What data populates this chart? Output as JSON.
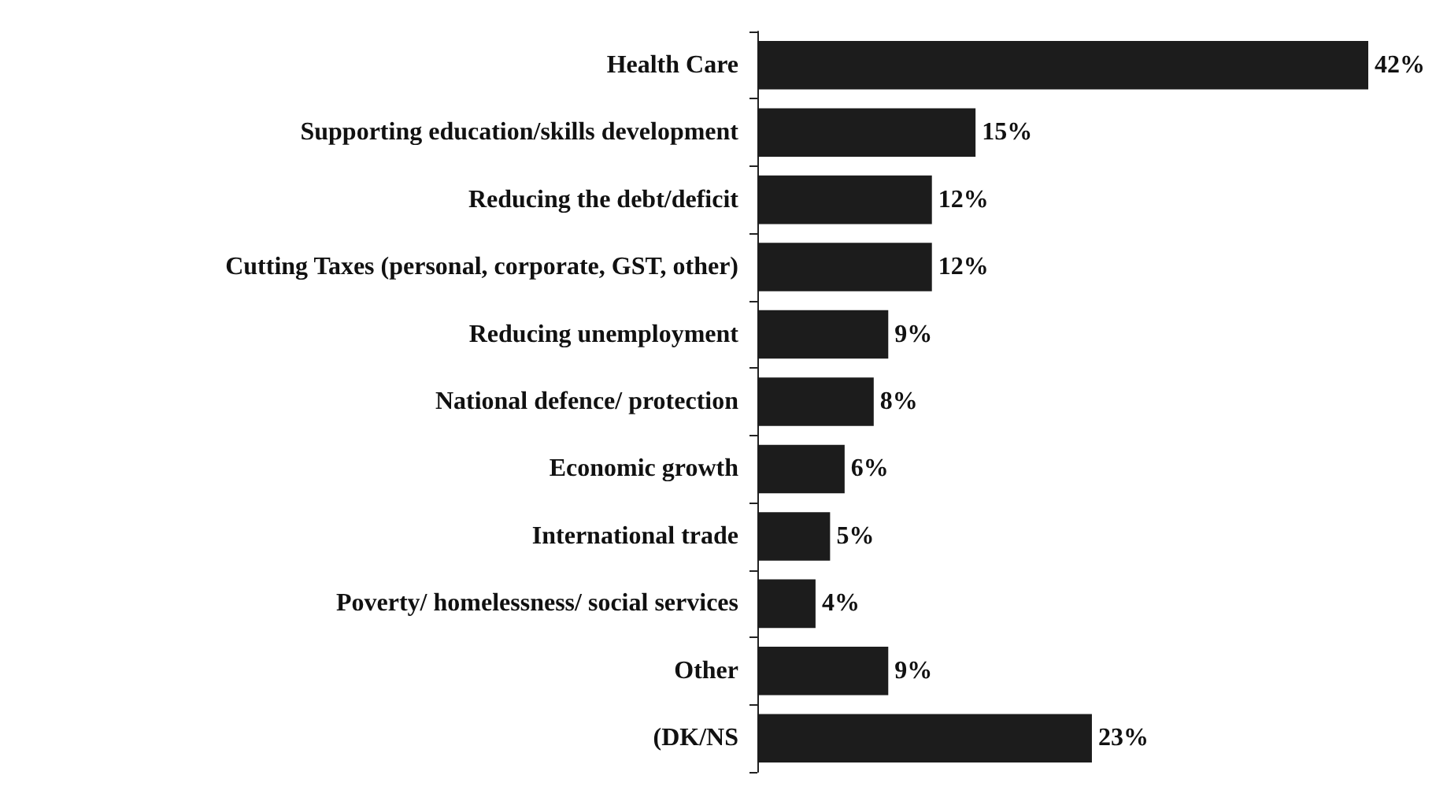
{
  "chart_data": {
    "type": "bar",
    "orientation": "horizontal",
    "categories": [
      "Health Care",
      "Supporting education/skills development",
      "Reducing the debt/deficit",
      "Cutting Taxes (personal, corporate, GST, other)",
      "Reducing unemployment",
      "National defence/ protection",
      "Economic growth",
      "International trade",
      "Poverty/ homelessness/ social services",
      "Other",
      "(DK/NS"
    ],
    "values": [
      42,
      15,
      12,
      12,
      9,
      8,
      6,
      5,
      4,
      9,
      23
    ],
    "value_labels": [
      "42%",
      "15%",
      "12%",
      "12%",
      "9%",
      "8%",
      "6%",
      "5%",
      "4%",
      "9%",
      "23%"
    ],
    "color": "#1c1c1c",
    "tick_labels": "y"
  }
}
